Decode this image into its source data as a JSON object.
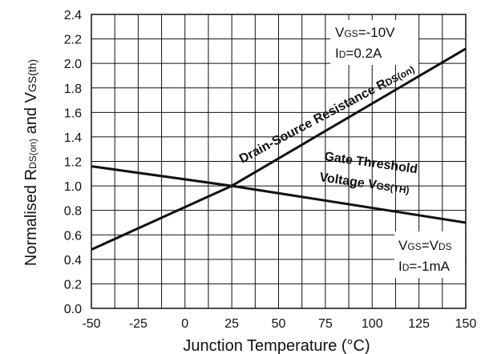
{
  "chart_data": {
    "type": "line",
    "xlabel": "Junction Temperature (°C)",
    "ylabel": {
      "prefix": "Normalised R",
      "sub1": "DS(on)",
      "mid": " and V",
      "sub2": "GS(th)"
    },
    "xlim": [
      -50,
      150
    ],
    "ylim": [
      0,
      2.4
    ],
    "x_ticks": [
      "-50",
      "-25",
      "0",
      "25",
      "50",
      "75",
      "100",
      "125",
      "150"
    ],
    "y_ticks": [
      "0.0",
      "0.2",
      "0.4",
      "0.6",
      "0.8",
      "1.0",
      "1.2",
      "1.4",
      "1.6",
      "1.8",
      "2.0",
      "2.2",
      "2.4"
    ],
    "grid": true,
    "series": [
      {
        "name": {
          "line1": "Drain-Source Resistance R",
          "line1_sub": "DS(on)"
        },
        "x": [
          -50,
          25,
          150
        ],
        "y": [
          0.48,
          1.0,
          2.12
        ]
      },
      {
        "name": {
          "line1": "Gate Threshold",
          "line2": "Voltage V",
          "line2_sub": "GS(TH)"
        },
        "x": [
          -50,
          25,
          150
        ],
        "y": [
          1.16,
          1.0,
          0.7
        ]
      }
    ],
    "annotations": {
      "rds_conditions": {
        "line1_main": "V",
        "line1_sub": "GS",
        "line1_rest": "=-10V",
        "line2_main": "I",
        "line2_sub": "D",
        "line2_rest": "=0.2A"
      },
      "vgs_conditions": {
        "line1_main": "V",
        "line1_sub": "GS",
        "line1_mid": "=V",
        "line1_sub2": "DS",
        "line2_main": "I",
        "line2_sub": "D",
        "line2_rest": "=-1mA"
      }
    }
  }
}
